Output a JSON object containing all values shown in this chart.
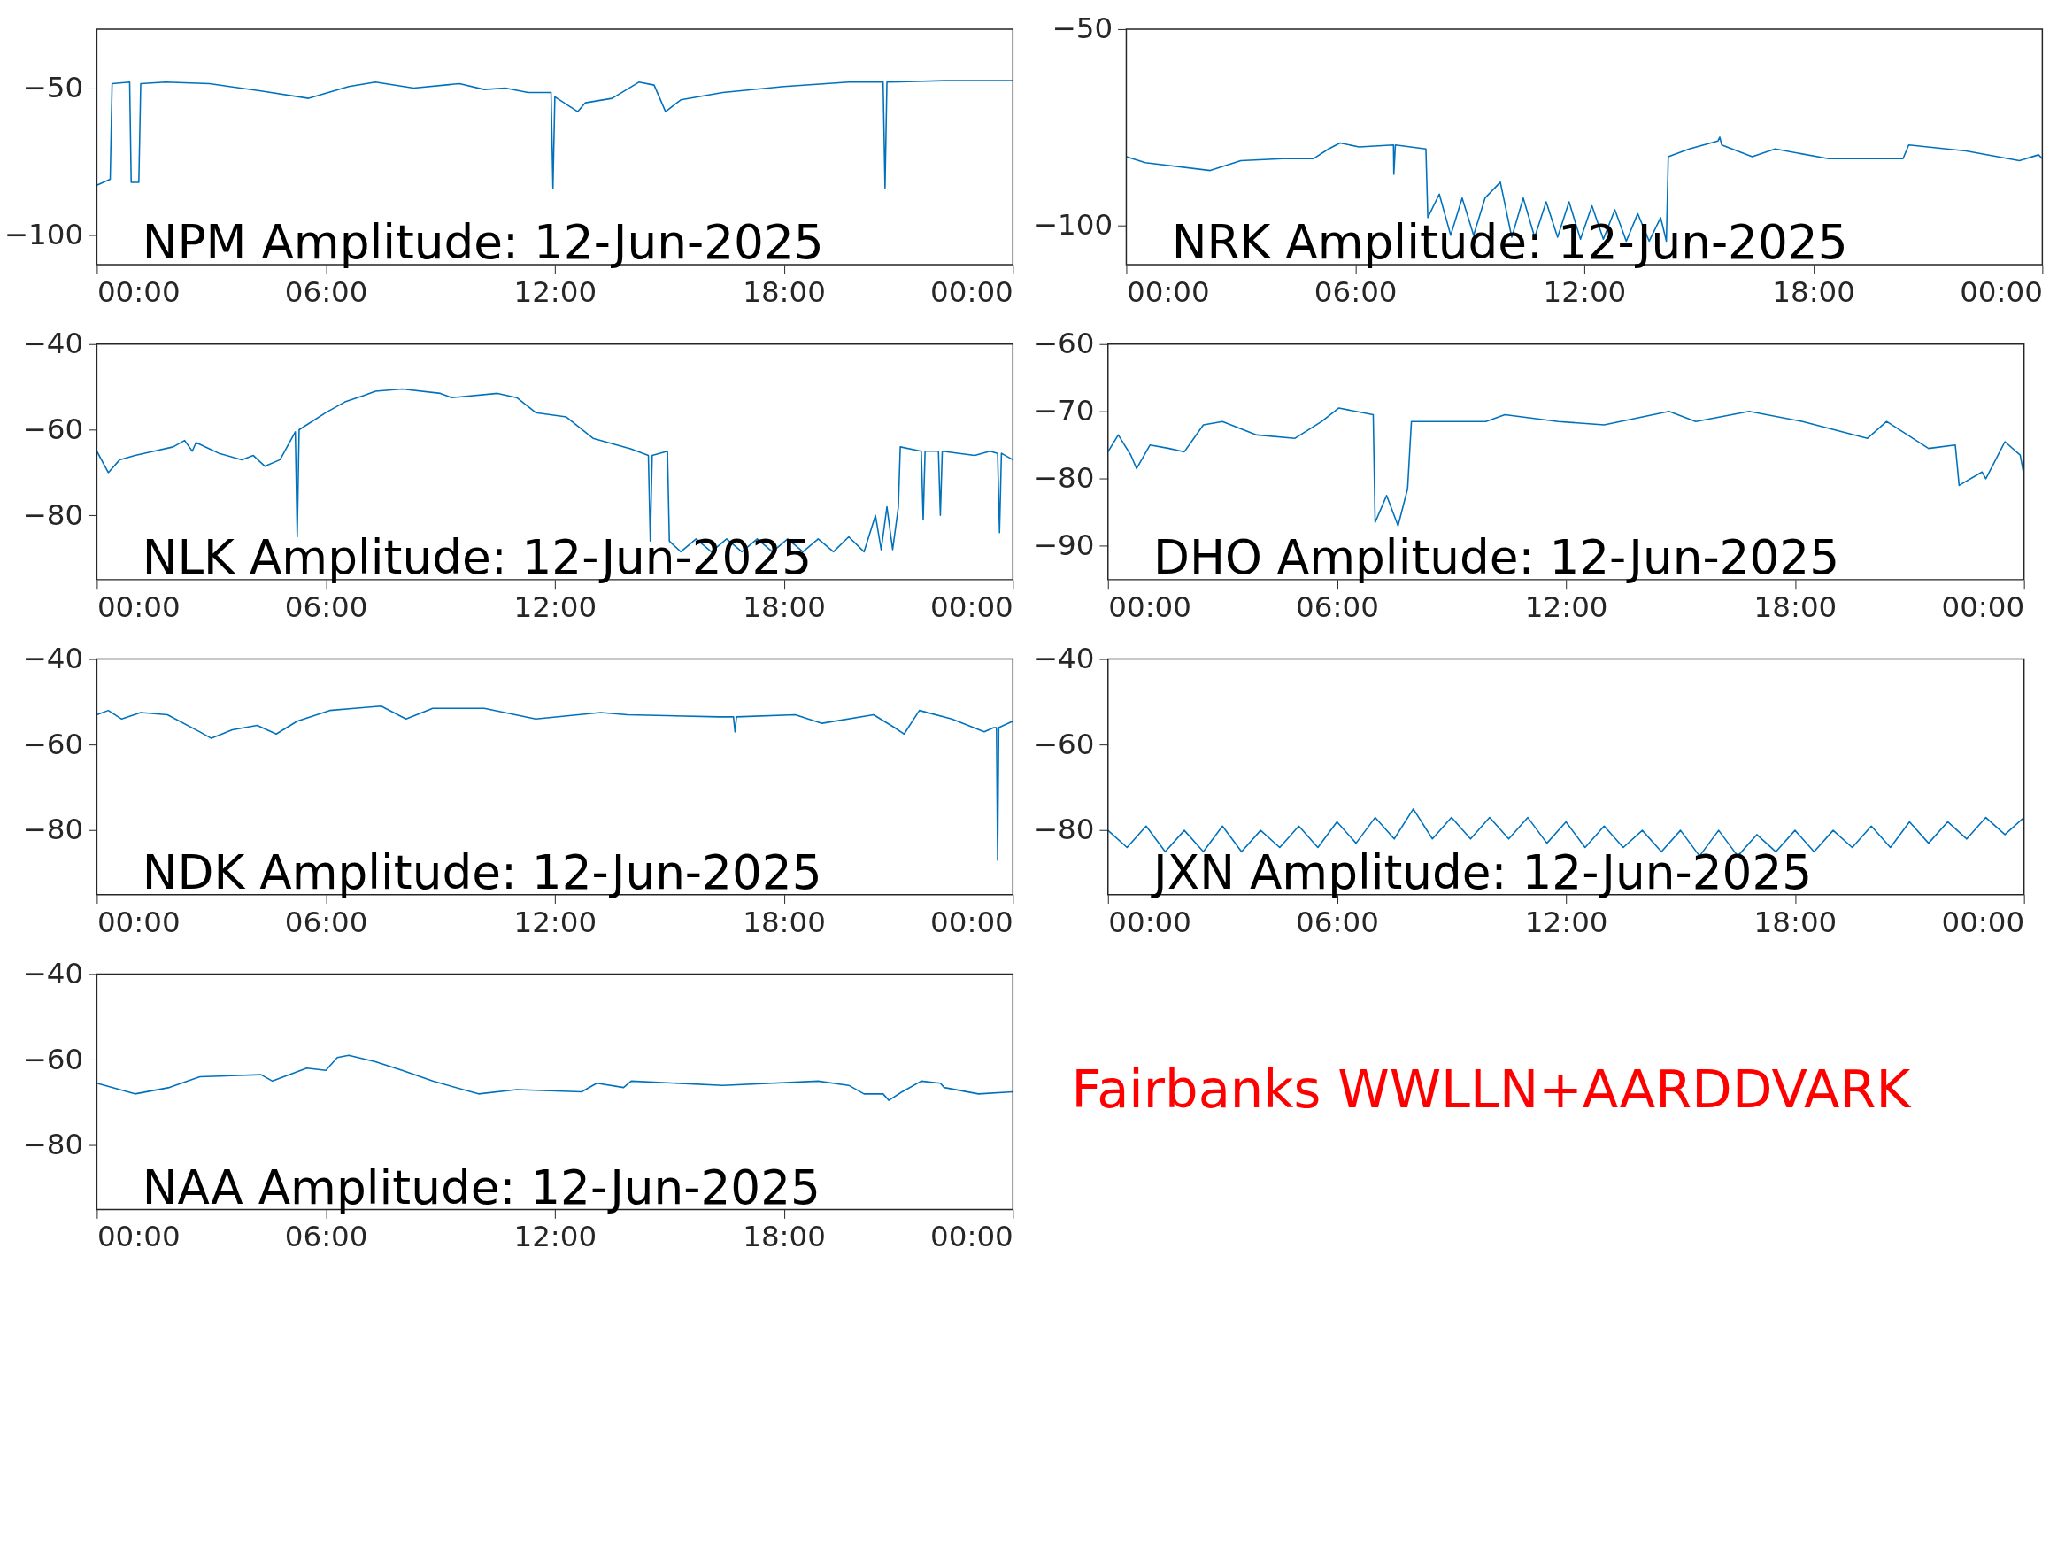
{
  "chart_data": [
    {
      "type": "line",
      "title": "NPM Amplitude: 12-Jun-2025",
      "color": "#0072bd",
      "xlim": [
        0,
        24
      ],
      "xticks": [
        {
          "value": 0,
          "label": "00:00"
        },
        {
          "value": 6,
          "label": "06:00"
        },
        {
          "value": 12,
          "label": "12:00"
        },
        {
          "value": 18,
          "label": "18:00"
        },
        {
          "value": 24,
          "label": "00:00"
        }
      ],
      "ylim": [
        -110,
        -30
      ],
      "yticks": [
        -100,
        -50
      ],
      "x": [
        0,
        0.35,
        0.4,
        0.86,
        0.9,
        1.1,
        1.15,
        1.8,
        2.95,
        4.3,
        5.55,
        6.6,
        7.3,
        8.3,
        9.5,
        10.15,
        10.7,
        11.3,
        11.9,
        11.95,
        12.0,
        12.6,
        12.8,
        13.5,
        14.2,
        14.6,
        14.9,
        15.3,
        16.4,
        18.0,
        19.7,
        20.6,
        20.65,
        20.7,
        22.2,
        24
      ],
      "values": [
        -83,
        -81,
        -48.5,
        -48,
        -82,
        -82,
        -48.5,
        -48,
        -48.5,
        -51,
        -53.5,
        -49.5,
        -48,
        -50,
        -48.5,
        -50.5,
        -50,
        -51.5,
        -51.5,
        -84,
        -53,
        -58,
        -55,
        -53.5,
        -48,
        -49,
        -58,
        -54,
        -51.5,
        -49.5,
        -48,
        -48,
        -84,
        -48,
        -47.5,
        -47.5
      ]
    },
    {
      "type": "line",
      "title": "NRK Amplitude: 12-Jun-2025",
      "color": "#0072bd",
      "xlim": [
        0,
        24
      ],
      "xticks": [
        {
          "value": 0,
          "label": "00:00"
        },
        {
          "value": 6,
          "label": "06:00"
        },
        {
          "value": 12,
          "label": "12:00"
        },
        {
          "value": 18,
          "label": "18:00"
        },
        {
          "value": 24,
          "label": "00:00"
        }
      ],
      "ylim": [
        -110,
        -50
      ],
      "yticks": [
        -100,
        -50
      ],
      "x": [
        0,
        0.5,
        2.2,
        3.0,
        4.1,
        4.9,
        5.3,
        5.6,
        6.1,
        7.0,
        7.01,
        7.05,
        7.85,
        7.9,
        8.2,
        8.5,
        8.8,
        9.1,
        9.4,
        9.8,
        10.1,
        10.4,
        10.7,
        11.0,
        11.3,
        11.6,
        11.9,
        12.2,
        12.5,
        12.8,
        13.1,
        13.4,
        13.7,
        14.0,
        14.15,
        14.2,
        14.75,
        15.5,
        15.55,
        15.6,
        16.4,
        17.0,
        18.4,
        19.9,
        20.35,
        20.5,
        22.0,
        23.4,
        23.9,
        24
      ],
      "values": [
        -82.5,
        -84,
        -86,
        -83.5,
        -83,
        -83,
        -80.5,
        -79,
        -80,
        -79.5,
        -87,
        -79.5,
        -80.5,
        -98,
        -92,
        -102.5,
        -93,
        -102.5,
        -93,
        -89,
        -103,
        -93,
        -103,
        -94,
        -103,
        -94,
        -103.5,
        -95,
        -103.5,
        -96,
        -104,
        -97,
        -104,
        -98,
        -104,
        -82.5,
        -80.5,
        -78.5,
        -77.5,
        -79.5,
        -82.5,
        -80.5,
        -83,
        -83,
        -83,
        -79.5,
        -81,
        -83.5,
        -82,
        -83
      ]
    },
    {
      "type": "line",
      "title": "NLK Amplitude: 12-Jun-2025",
      "color": "#0072bd",
      "xlim": [
        0,
        24
      ],
      "xticks": [
        {
          "value": 0,
          "label": "00:00"
        },
        {
          "value": 6,
          "label": "06:00"
        },
        {
          "value": 12,
          "label": "12:00"
        },
        {
          "value": 18,
          "label": "18:00"
        },
        {
          "value": 24,
          "label": "00:00"
        }
      ],
      "ylim": [
        -95,
        -40
      ],
      "yticks": [
        -80,
        -60,
        -40
      ],
      "x": [
        0,
        0.3,
        0.6,
        1,
        2,
        2.3,
        2.5,
        2.6,
        3.2,
        3.8,
        4.1,
        4.4,
        4.8,
        5.2,
        5.25,
        5.3,
        6,
        6.5,
        7,
        7.3,
        8,
        9,
        9.3,
        10.5,
        11,
        11.5,
        12.3,
        13,
        14,
        14.45,
        14.5,
        14.55,
        14.95,
        15.0,
        15.3,
        15.7,
        16.1,
        16.5,
        16.9,
        17.3,
        17.7,
        18.1,
        18.5,
        18.9,
        19.3,
        19.7,
        20.1,
        20.4,
        20.55,
        20.7,
        20.85,
        21.0,
        21.05,
        21.6,
        21.65,
        21.7,
        22.05,
        22.1,
        22.15,
        23,
        23.4,
        23.6,
        23.65,
        23.7,
        24
      ],
      "values": [
        -65,
        -70,
        -67,
        -66,
        -64,
        -62.5,
        -65,
        -63,
        -65.5,
        -67,
        -66,
        -68.5,
        -67,
        -60.5,
        -85,
        -60,
        -56,
        -53.5,
        -52,
        -51,
        -50.5,
        -51.5,
        -52.5,
        -51.5,
        -52.5,
        -56,
        -57,
        -62,
        -64.5,
        -66,
        -86,
        -66,
        -65,
        -86,
        -88.5,
        -85.5,
        -88.5,
        -85.5,
        -88.5,
        -85.5,
        -88.5,
        -85.5,
        -88.5,
        -85.5,
        -88.5,
        -85,
        -88.5,
        -80,
        -88,
        -78,
        -88,
        -78,
        -64,
        -65,
        -81,
        -65,
        -65,
        -80,
        -65,
        -66,
        -65,
        -65.5,
        -84,
        -65.5,
        -67
      ]
    },
    {
      "type": "line",
      "title": "DHO Amplitude: 12-Jun-2025",
      "color": "#0072bd",
      "xlim": [
        0,
        24
      ],
      "xticks": [
        {
          "value": 0,
          "label": "00:00"
        },
        {
          "value": 6,
          "label": "06:00"
        },
        {
          "value": 12,
          "label": "12:00"
        },
        {
          "value": 18,
          "label": "18:00"
        },
        {
          "value": 24,
          "label": "00:00"
        }
      ],
      "ylim": [
        -95,
        -60
      ],
      "yticks": [
        -90,
        -80,
        -70,
        -60
      ],
      "x": [
        0,
        0.27,
        0.6,
        0.75,
        1.1,
        1.6,
        2.0,
        2.5,
        3.0,
        3.9,
        4.9,
        5.6,
        6.05,
        6.95,
        7.0,
        7.3,
        7.6,
        7.85,
        7.95,
        9.9,
        10.4,
        11.8,
        13.0,
        14.7,
        15.4,
        16.8,
        18.2,
        19.9,
        20.4,
        21.5,
        22.2,
        22.3,
        22.9,
        23.0,
        23.5,
        23.9,
        24
      ],
      "values": [
        -76,
        -73.5,
        -76.5,
        -78.5,
        -75,
        -75.5,
        -76,
        -72,
        -71.5,
        -73.5,
        -74,
        -71.5,
        -69.5,
        -70.5,
        -86.5,
        -82.5,
        -87,
        -81.5,
        -71.5,
        -71.5,
        -70.5,
        -71.5,
        -72,
        -70,
        -71.5,
        -70,
        -71.5,
        -74,
        -71.5,
        -75.5,
        -75,
        -81,
        -79,
        -80,
        -74.5,
        -76.5,
        -79.5
      ]
    },
    {
      "type": "line",
      "title": "NDK Amplitude: 12-Jun-2025",
      "color": "#0072bd",
      "xlim": [
        0,
        24
      ],
      "xticks": [
        {
          "value": 0,
          "label": "00:00"
        },
        {
          "value": 6,
          "label": "06:00"
        },
        {
          "value": 12,
          "label": "12:00"
        },
        {
          "value": 18,
          "label": "18:00"
        },
        {
          "value": 24,
          "label": "00:00"
        }
      ],
      "ylim": [
        -95,
        -40
      ],
      "yticks": [
        -80,
        -60,
        -40
      ],
      "x": [
        0,
        0.3,
        0.65,
        1.15,
        1.85,
        2.7,
        3.0,
        3.55,
        4.2,
        4.7,
        5.25,
        6.1,
        6.75,
        7.45,
        8.1,
        8.8,
        10.15,
        11.5,
        13.2,
        13.9,
        16.3,
        16.68,
        16.72,
        16.76,
        18.3,
        19.0,
        20.35,
        20.9,
        21.15,
        21.55,
        22.4,
        23.25,
        23.5,
        23.57,
        23.6,
        23.63,
        24
      ],
      "values": [
        -53,
        -52,
        -54,
        -52.5,
        -53,
        -57,
        -58.5,
        -56.5,
        -55.5,
        -57.5,
        -54.5,
        -52,
        -51.5,
        -51,
        -54,
        -51.5,
        -51.5,
        -54,
        -52.5,
        -53,
        -53.5,
        -53.5,
        -57,
        -53.5,
        -53,
        -55,
        -53,
        -56,
        -57.5,
        -52,
        -54,
        -57,
        -56,
        -56,
        -87,
        -56,
        -54.5
      ]
    },
    {
      "type": "line",
      "title": "JXN Amplitude: 12-Jun-2025",
      "color": "#0072bd",
      "xlim": [
        0,
        24
      ],
      "xticks": [
        {
          "value": 0,
          "label": "00:00"
        },
        {
          "value": 6,
          "label": "06:00"
        },
        {
          "value": 12,
          "label": "12:00"
        },
        {
          "value": 18,
          "label": "18:00"
        },
        {
          "value": 24,
          "label": "00:00"
        }
      ],
      "ylim": [
        -95,
        -40
      ],
      "yticks": [
        -80,
        -60,
        -40
      ],
      "x": [
        0,
        0.5,
        1,
        1.5,
        2,
        2.5,
        3,
        3.5,
        4,
        4.5,
        5,
        5.5,
        6,
        6.5,
        7,
        7.5,
        8,
        8.5,
        9,
        9.5,
        10,
        10.5,
        11,
        11.5,
        12,
        12.5,
        13,
        13.5,
        14,
        14.5,
        15,
        15.5,
        16,
        16.5,
        17,
        17.5,
        18,
        18.5,
        19,
        19.5,
        20,
        20.5,
        21,
        21.5,
        22,
        22.5,
        23,
        23.5,
        24
      ],
      "values": [
        -80,
        -84,
        -79,
        -85,
        -80,
        -85,
        -79,
        -85,
        -80,
        -84,
        -79,
        -84,
        -78,
        -83,
        -77,
        -82,
        -75,
        -82,
        -77,
        -82,
        -77,
        -82,
        -77,
        -83,
        -78,
        -84,
        -79,
        -84,
        -80,
        -85,
        -80,
        -86,
        -80,
        -86,
        -81,
        -85,
        -80,
        -85,
        -80,
        -84,
        -79,
        -84,
        -78,
        -83,
        -78,
        -82,
        -77,
        -81,
        -77
      ]
    },
    {
      "type": "line",
      "title": "NAA Amplitude: 12-Jun-2025",
      "color": "#0072bd",
      "xlim": [
        0,
        24
      ],
      "xticks": [
        {
          "value": 0,
          "label": "00:00"
        },
        {
          "value": 6,
          "label": "06:00"
        },
        {
          "value": 12,
          "label": "12:00"
        },
        {
          "value": 18,
          "label": "18:00"
        },
        {
          "value": 24,
          "label": "00:00"
        }
      ],
      "ylim": [
        -95,
        -40
      ],
      "yticks": [
        -80,
        -60,
        -40
      ],
      "x": [
        0,
        1,
        1.9,
        2.7,
        4.3,
        4.6,
        5.5,
        6,
        6.3,
        6.6,
        7.3,
        8,
        8.8,
        10,
        11,
        12.7,
        13.1,
        13.8,
        14,
        16.4,
        18.9,
        19.7,
        20.1,
        20.6,
        20.75,
        21.1,
        21.6,
        22.1,
        22.2,
        23.1,
        24
      ],
      "values": [
        -65.5,
        -68,
        -66.5,
        -64,
        -63.5,
        -65,
        -62,
        -62.5,
        -59.5,
        -59,
        -60.5,
        -62.5,
        -65,
        -68,
        -67,
        -67.5,
        -65.5,
        -66.5,
        -65,
        -66,
        -65,
        -66,
        -68,
        -68,
        -69.5,
        -67.5,
        -65,
        -65.5,
        -66.5,
        -68,
        -67.5
      ]
    },
    {
      "type": "other",
      "annotations": [
        "Fairbanks WWLLN+AARDDVARK"
      ],
      "color": "#ff0000"
    }
  ]
}
